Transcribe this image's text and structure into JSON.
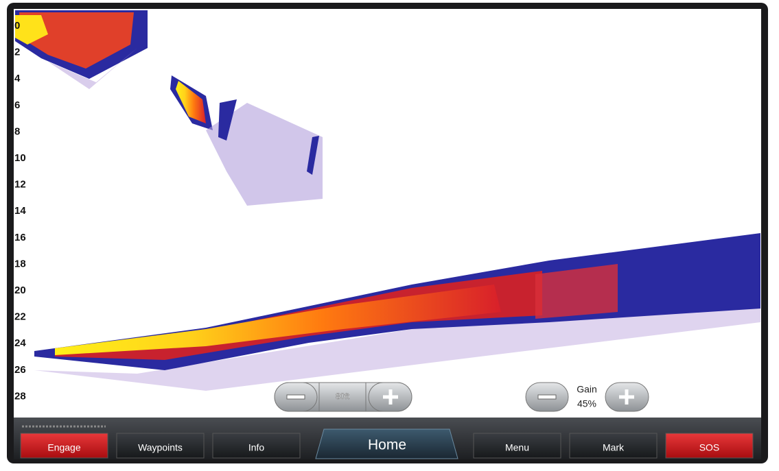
{
  "depth_scale": {
    "labels": [
      0,
      2,
      4,
      6,
      8,
      10,
      12,
      14,
      16,
      18,
      20,
      22,
      24,
      26,
      28
    ]
  },
  "range_control": {
    "value": "80ft"
  },
  "gain_control": {
    "label": "Gain",
    "value": "45%"
  },
  "menu_bar": {
    "buttons": [
      "Engage",
      "Waypoints",
      "Info",
      "Home",
      "Menu",
      "Mark",
      "SOS"
    ]
  }
}
